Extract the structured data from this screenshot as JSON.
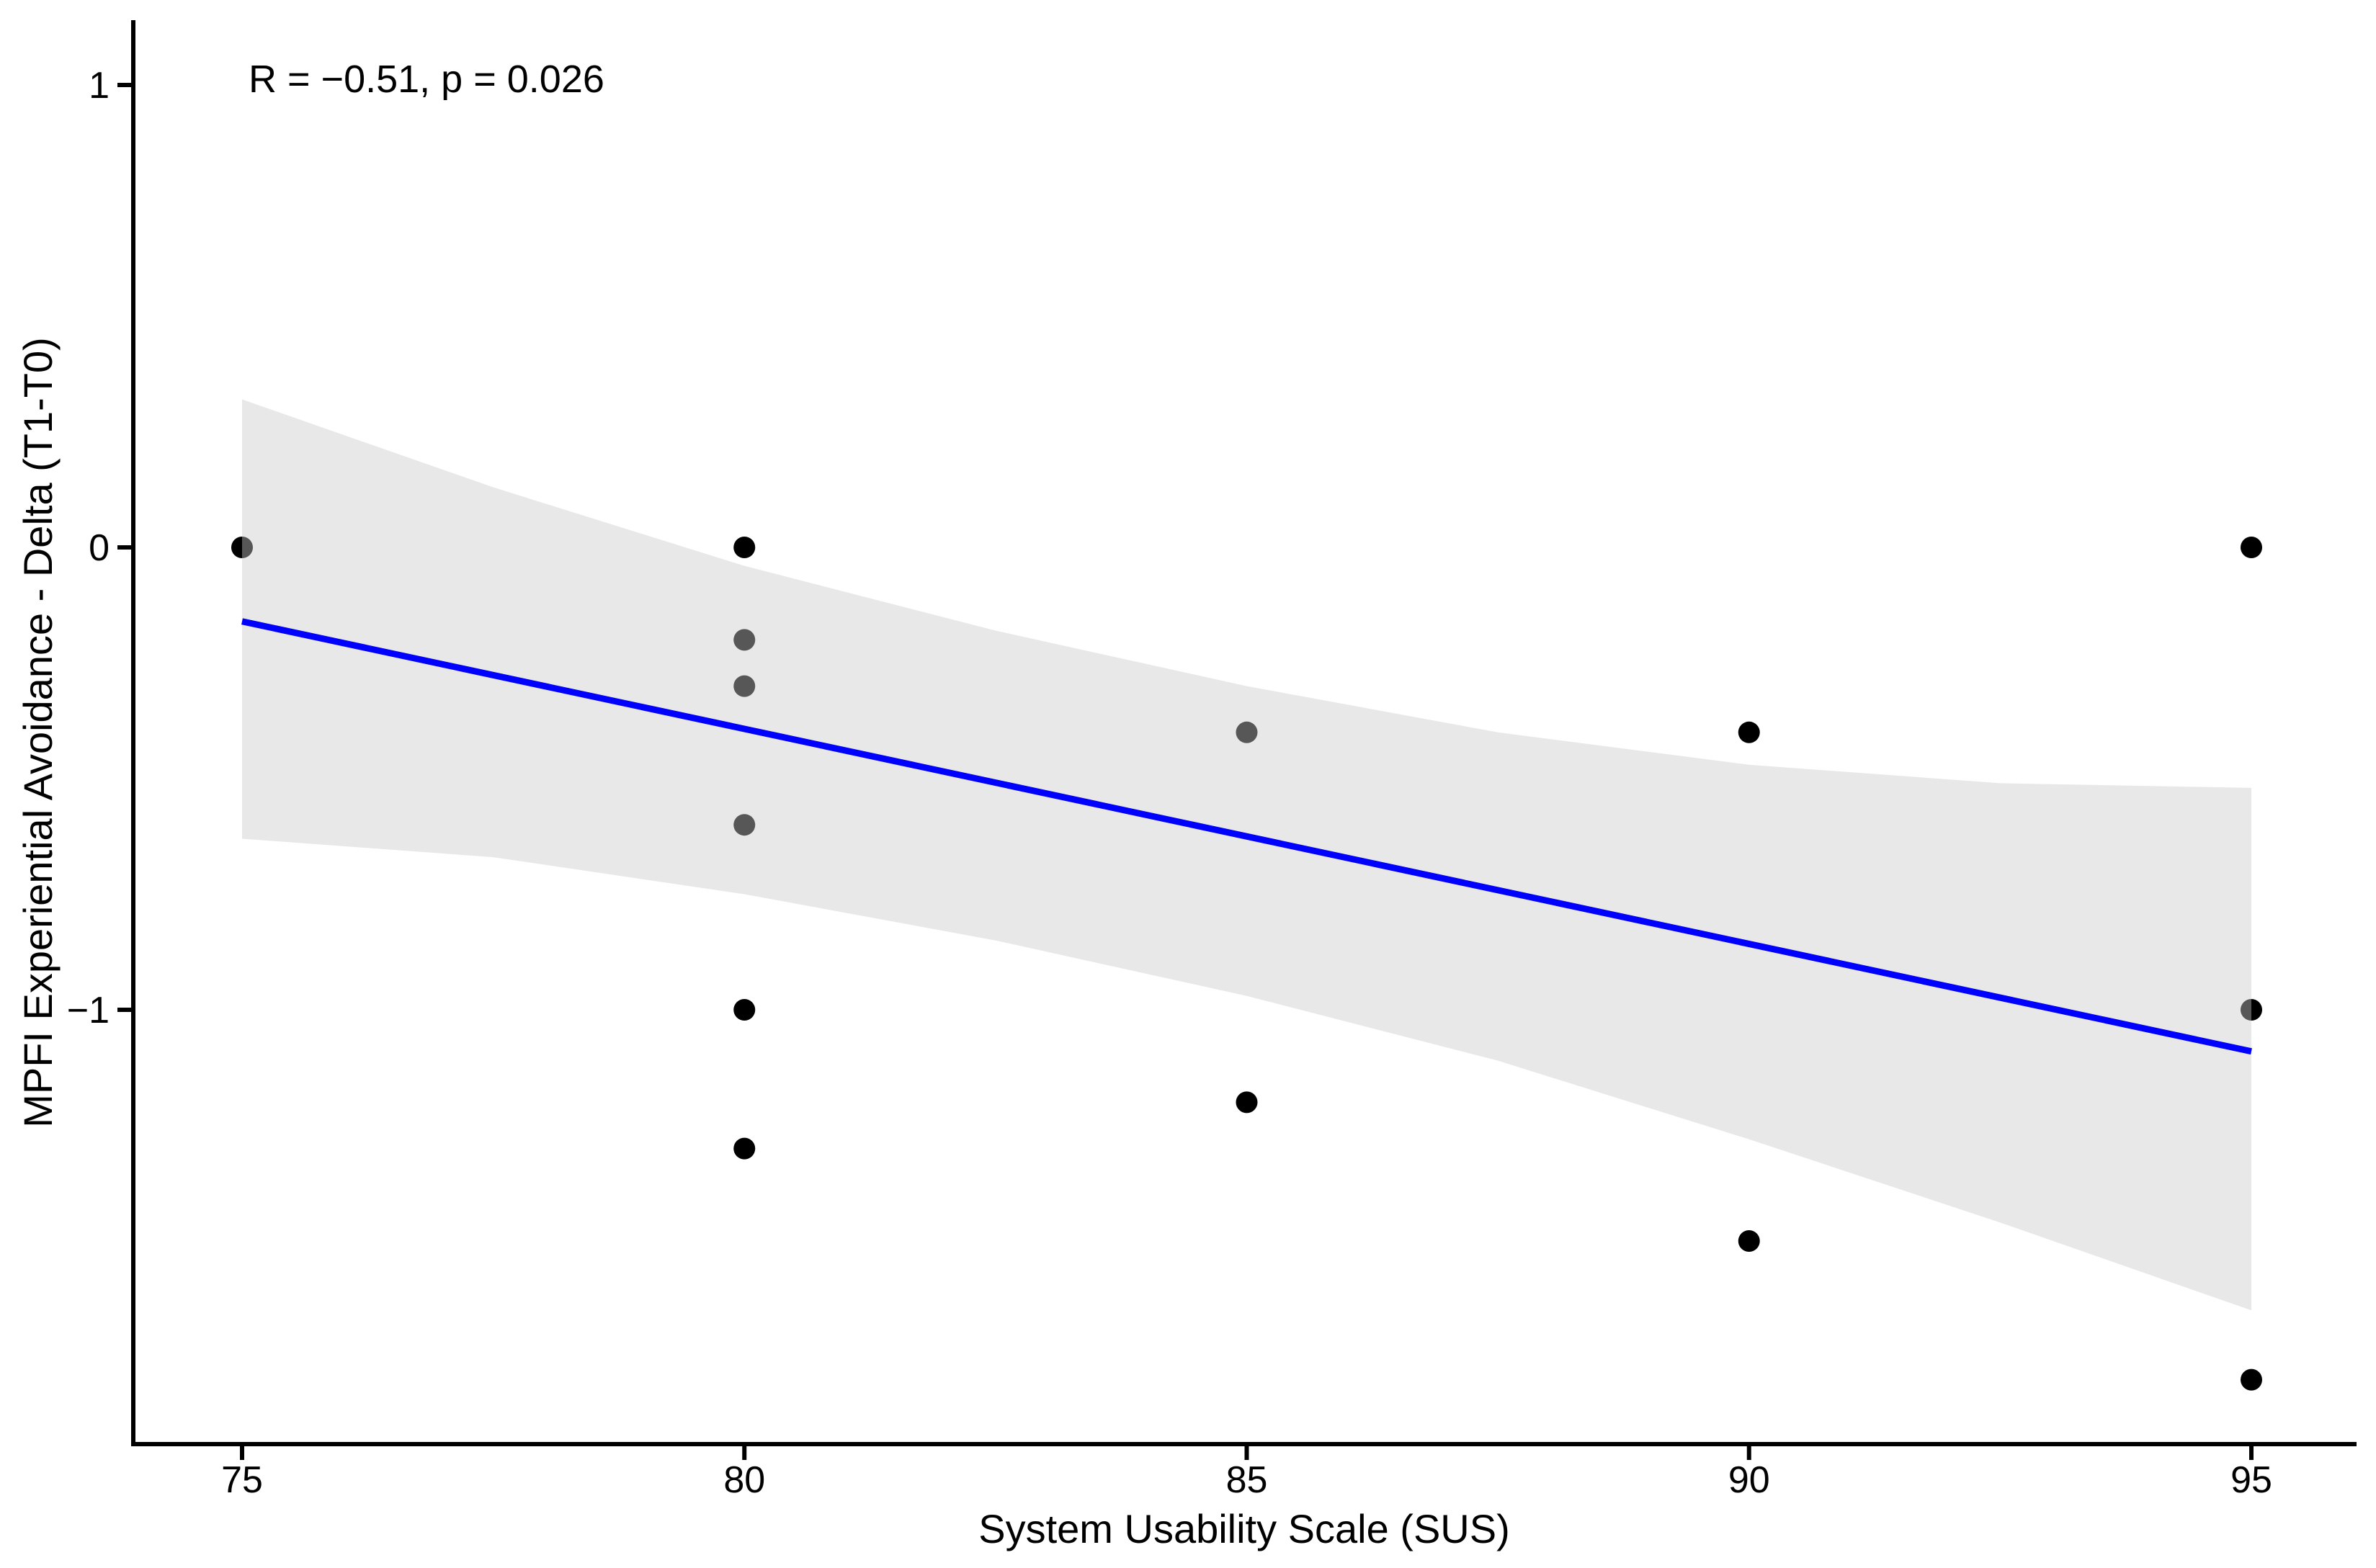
{
  "figure": {
    "background": "#ffffff",
    "axis_color": "#000000"
  },
  "chart_data": {
    "type": "scatter",
    "title": "",
    "xlabel": "System Usability Scale (SUS)",
    "ylabel": "MPFI Experiential Avoidance - Delta (T1-T0)",
    "annotation": "R = −0.51, p = 0.026",
    "xlim": [
      73.9,
      96.1
    ],
    "ylim": [
      -1.94,
      1.14
    ],
    "grid": "off",
    "legend_position": "none",
    "x_ticks": [
      {
        "v": 75,
        "label": "75"
      },
      {
        "v": 80,
        "label": "80"
      },
      {
        "v": 85,
        "label": "85"
      },
      {
        "v": 90,
        "label": "90"
      },
      {
        "v": 95,
        "label": "95"
      }
    ],
    "y_ticks": [
      {
        "v": 1,
        "label": "1"
      },
      {
        "v": 0,
        "label": "0"
      },
      {
        "v": -1,
        "label": "−1"
      }
    ],
    "point_color": "#000000",
    "point_radius_px": 15,
    "points": [
      {
        "x": 75,
        "y": 0
      },
      {
        "x": 80,
        "y": 0
      },
      {
        "x": 80,
        "y": -0.2
      },
      {
        "x": 80,
        "y": -0.3
      },
      {
        "x": 80,
        "y": -0.6
      },
      {
        "x": 80,
        "y": -1.0
      },
      {
        "x": 80,
        "y": -1.3
      },
      {
        "x": 85,
        "y": -0.4
      },
      {
        "x": 85,
        "y": -1.2
      },
      {
        "x": 90,
        "y": -0.4
      },
      {
        "x": 90,
        "y": -1.5
      },
      {
        "x": 95,
        "y": 0
      },
      {
        "x": 95,
        "y": -1.0
      },
      {
        "x": 95,
        "y": -1.8
      }
    ],
    "regression_line": {
      "color": "#0000FF",
      "x1": 75,
      "y1": -0.16,
      "x2": 95,
      "y2": -1.09
    },
    "ci_band": {
      "fill_rgba": "rgba(202,202,202,0.43)",
      "x": [
        75,
        77.5,
        80,
        82.5,
        85,
        87.5,
        90,
        92.5,
        95
      ],
      "top": [
        0.32,
        0.13,
        -0.04,
        -0.18,
        -0.3,
        -0.4,
        -0.47,
        -0.51,
        -0.52
      ],
      "bottom": [
        -0.63,
        -0.67,
        -0.75,
        -0.85,
        -0.97,
        -1.11,
        -1.28,
        -1.46,
        -1.65
      ]
    }
  }
}
